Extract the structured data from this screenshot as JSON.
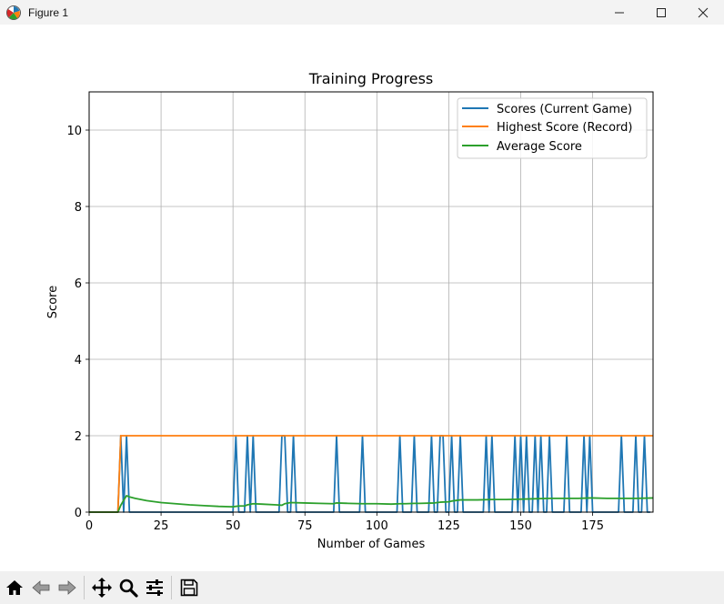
{
  "window": {
    "title": "Figure 1"
  },
  "toolbar": {
    "buttons": [
      "home-icon",
      "back-icon",
      "forward-icon",
      "pan-icon",
      "zoom-icon",
      "configure-subplots-icon",
      "save-icon"
    ]
  },
  "chart_data": {
    "type": "line",
    "title": "Training Progress",
    "xlabel": "Number of Games",
    "ylabel": "Score",
    "xlim": [
      0,
      196
    ],
    "ylim": [
      0,
      11
    ],
    "xticks": [
      0,
      25,
      50,
      75,
      100,
      125,
      150,
      175
    ],
    "yticks": [
      0,
      2,
      4,
      6,
      8,
      10
    ],
    "grid": true,
    "legend_position": "top-right",
    "series": [
      {
        "name": "Scores (Current Game)",
        "color": "#1f77b4",
        "spikes": [
          11,
          13,
          51,
          55,
          57,
          67,
          68,
          71,
          86,
          95,
          108,
          113,
          119,
          122,
          123,
          126,
          129,
          138,
          140,
          148,
          150,
          152,
          155,
          157,
          160,
          166,
          172,
          174,
          185,
          190,
          193
        ],
        "spike_value": 2,
        "base_value": 0,
        "length": 196
      },
      {
        "name": "Highest Score (Record)",
        "color": "#ff7f0e",
        "x": [
          0,
          10,
          11,
          196
        ],
        "y": [
          0,
          0,
          2,
          2
        ]
      },
      {
        "name": "Average Score",
        "color": "#2ca02c",
        "x": [
          0,
          10,
          11,
          12,
          13,
          14,
          16,
          18,
          20,
          25,
          30,
          35,
          40,
          45,
          50,
          51,
          52,
          54,
          55,
          57,
          60,
          65,
          67,
          68,
          70,
          75,
          80,
          85,
          86,
          90,
          95,
          100,
          105,
          108,
          110,
          113,
          115,
          120,
          122,
          125,
          126,
          129,
          130,
          135,
          140,
          145,
          150,
          155,
          160,
          165,
          170,
          174,
          175,
          180,
          185,
          190,
          196
        ],
        "y": [
          0,
          0,
          0.18,
          0.31,
          0.43,
          0.4,
          0.36,
          0.33,
          0.3,
          0.25,
          0.22,
          0.19,
          0.17,
          0.15,
          0.14,
          0.15,
          0.16,
          0.16,
          0.19,
          0.22,
          0.21,
          0.19,
          0.18,
          0.22,
          0.25,
          0.24,
          0.23,
          0.22,
          0.24,
          0.23,
          0.22,
          0.22,
          0.21,
          0.22,
          0.22,
          0.23,
          0.23,
          0.24,
          0.26,
          0.27,
          0.29,
          0.32,
          0.32,
          0.32,
          0.33,
          0.33,
          0.34,
          0.35,
          0.36,
          0.36,
          0.36,
          0.37,
          0.37,
          0.36,
          0.36,
          0.36,
          0.37
        ]
      }
    ]
  }
}
